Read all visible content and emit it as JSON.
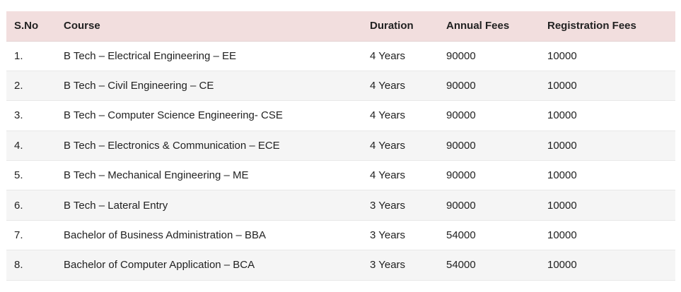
{
  "table": {
    "headers": [
      "S.No",
      "Course",
      "Duration",
      "Annual Fees",
      "Registration Fees"
    ],
    "rows": [
      [
        "1.",
        "B Tech – Electrical Engineering – EE",
        "4 Years",
        "90000",
        "10000"
      ],
      [
        "2.",
        "B Tech – Civil Engineering – CE",
        "4 Years",
        "90000",
        "10000"
      ],
      [
        "3.",
        "B Tech – Computer Science Engineering- CSE",
        "4 Years",
        "90000",
        "10000"
      ],
      [
        "4.",
        "B Tech – Electronics & Communication – ECE",
        "4 Years",
        "90000",
        "10000"
      ],
      [
        "5.",
        "B Tech – Mechanical Engineering – ME",
        "4 Years",
        "90000",
        "10000"
      ],
      [
        "6.",
        "B Tech – Lateral Entry",
        "3 Years",
        "90000",
        "10000"
      ],
      [
        "7.",
        "Bachelor of Business Administration – BBA",
        "3 Years",
        "54000",
        "10000"
      ],
      [
        "8.",
        "Bachelor of Computer Application – BCA",
        "3 Years",
        "54000",
        "10000"
      ]
    ]
  },
  "colors": {
    "header_background": "#f2dede",
    "row_alt_background": "#f5f5f5",
    "text": "#222222"
  }
}
